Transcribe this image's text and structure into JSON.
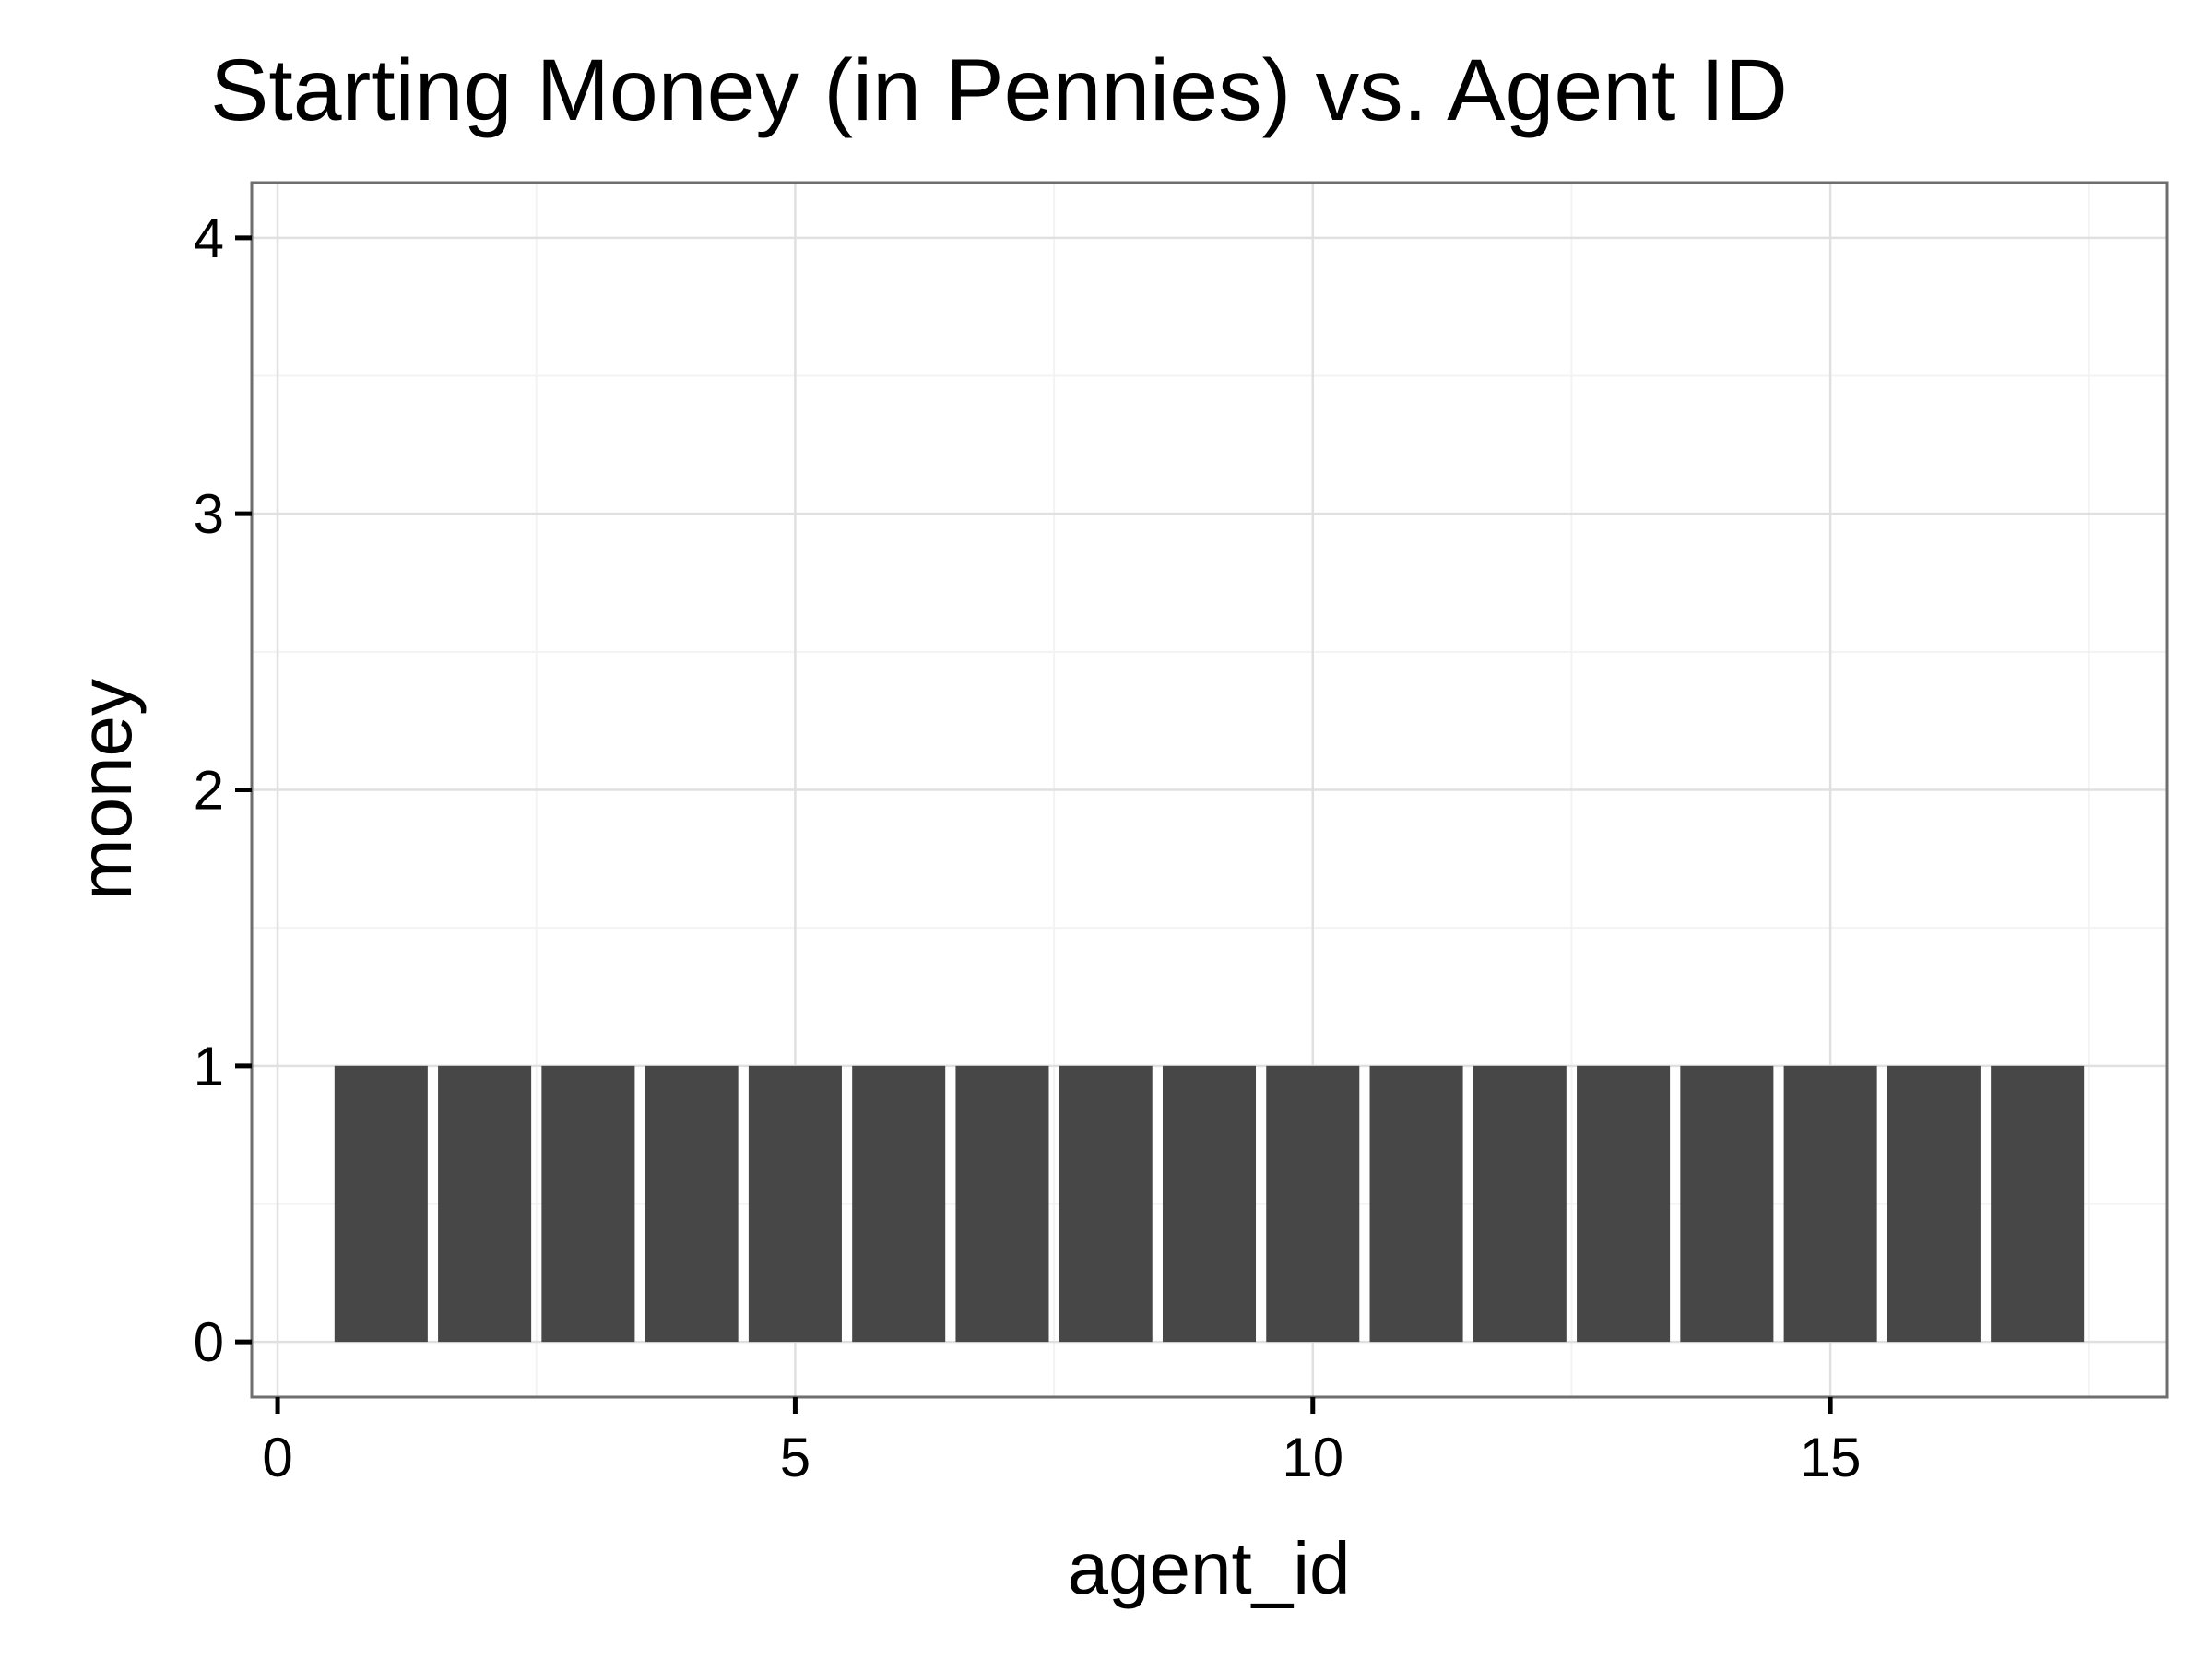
{
  "chart_data": {
    "type": "bar",
    "title": "Starting Money (in Pennies) vs. Agent ID",
    "xlabel": "agent_id",
    "ylabel": "money",
    "x": [
      1,
      2,
      3,
      4,
      5,
      6,
      7,
      8,
      9,
      10,
      11,
      12,
      13,
      14,
      15,
      16,
      17
    ],
    "values": [
      1,
      1,
      1,
      1,
      1,
      1,
      1,
      1,
      1,
      1,
      1,
      1,
      1,
      1,
      1,
      1,
      1
    ],
    "xlim": [
      -0.25,
      18.25
    ],
    "ylim": [
      -0.2,
      4.2
    ],
    "xticks": [
      0,
      5,
      10,
      15
    ],
    "xtick_labels": [
      "0",
      "5",
      "10",
      "15"
    ],
    "yticks": [
      0,
      1,
      2,
      3,
      4
    ],
    "ytick_labels": [
      "0",
      "1",
      "2",
      "3",
      "4"
    ],
    "bar_width": 0.9,
    "grid": true,
    "legend": "none",
    "colors": {
      "bar": "#474747",
      "panel_border": "#6e6e6e",
      "grid_major": "#e0e0e0",
      "grid_minor": "#f3f3f3",
      "background": "#ffffff"
    }
  }
}
